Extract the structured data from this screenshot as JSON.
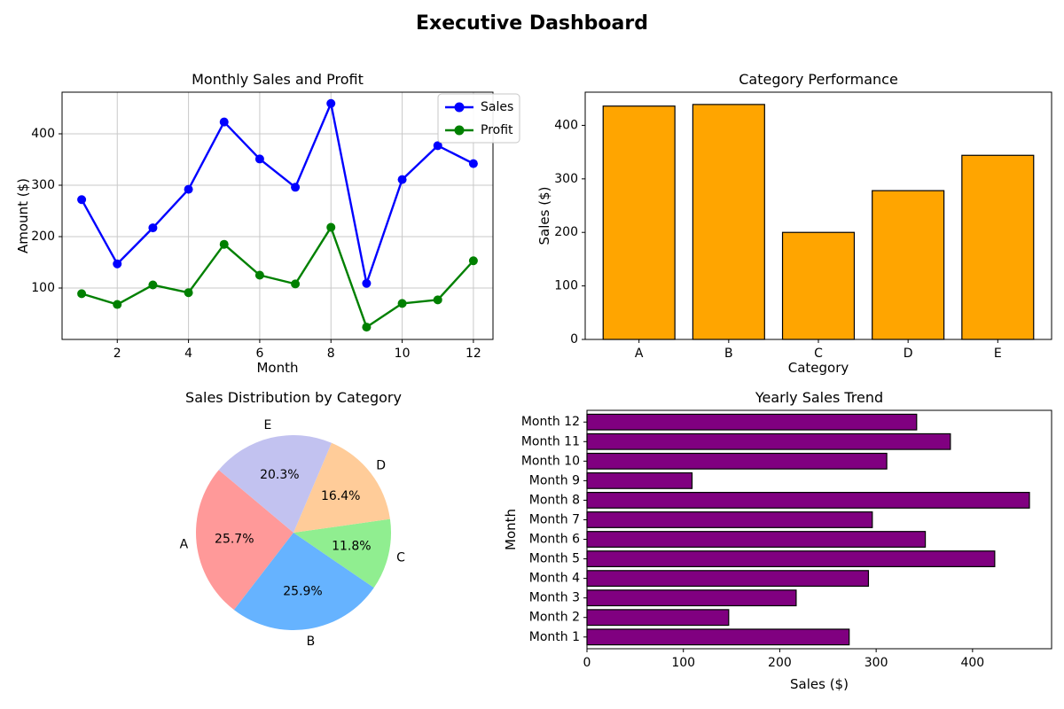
{
  "page_title": "Executive Dashboard",
  "chart_data": [
    {
      "id": "line",
      "type": "line",
      "title": "Monthly Sales and Profit",
      "xlabel": "Month",
      "ylabel": "Amount ($)",
      "x": [
        1,
        2,
        3,
        4,
        5,
        6,
        7,
        8,
        9,
        10,
        11,
        12
      ],
      "series": [
        {
          "name": "Sales",
          "color": "#0000ff",
          "values": [
            272,
            147,
            217,
            292,
            423,
            351,
            296,
            459,
            109,
            311,
            377,
            342
          ]
        },
        {
          "name": "Profit",
          "color": "#008000",
          "values": [
            89,
            68,
            106,
            91,
            185,
            125,
            108,
            218,
            24,
            70,
            77,
            153
          ]
        }
      ],
      "xticks": [
        2,
        4,
        6,
        8,
        10,
        12
      ],
      "yticks": [
        100,
        200,
        300,
        400
      ],
      "xlim": [
        0.45,
        12.55
      ],
      "ylim": [
        0,
        481
      ],
      "grid": true,
      "legend_position": "upper right"
    },
    {
      "id": "bar",
      "type": "bar",
      "title": "Category Performance",
      "xlabel": "Category",
      "ylabel": "Sales ($)",
      "categories": [
        "A",
        "B",
        "C",
        "D",
        "E"
      ],
      "values": [
        436,
        439,
        200,
        278,
        344
      ],
      "bar_color": "#ffa500",
      "edge_color": "#000000",
      "yticks": [
        0,
        100,
        200,
        300,
        400
      ],
      "ylim": [
        0,
        462
      ],
      "grid": false
    },
    {
      "id": "pie",
      "type": "pie",
      "title": "Sales Distribution by Category",
      "labels": [
        "A",
        "B",
        "C",
        "D",
        "E"
      ],
      "values": [
        25.7,
        25.9,
        11.8,
        16.4,
        20.3
      ],
      "percent_labels": [
        "25.7%",
        "25.9%",
        "11.8%",
        "16.4%",
        "20.3%"
      ],
      "colors": [
        "#ff9999",
        "#66b3ff",
        "#90ee90",
        "#ffcc99",
        "#c2c2f0"
      ],
      "start_angle": 140,
      "counterclockwise": true
    },
    {
      "id": "barh",
      "type": "barh",
      "title": "Yearly Sales Trend",
      "xlabel": "Sales ($)",
      "ylabel": "Month",
      "categories": [
        "Month 1",
        "Month 2",
        "Month 3",
        "Month 4",
        "Month 5",
        "Month 6",
        "Month 7",
        "Month 8",
        "Month 9",
        "Month 10",
        "Month 11",
        "Month 12"
      ],
      "values": [
        272,
        147,
        217,
        292,
        423,
        351,
        296,
        459,
        109,
        311,
        377,
        342
      ],
      "bar_color": "#800080",
      "edge_color": "#000000",
      "xticks": [
        0,
        100,
        200,
        300,
        400
      ],
      "xlim": [
        0,
        482
      ],
      "grid": false
    }
  ],
  "style": {
    "grid_color": "#c9c9c9",
    "spine_color": "#000000",
    "legend_border_color": "#c7c7c7",
    "text_color": "#000000"
  }
}
